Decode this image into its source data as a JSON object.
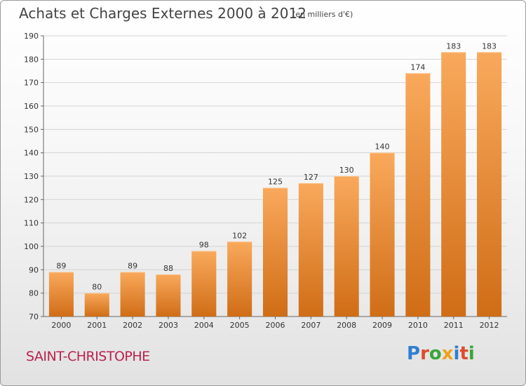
{
  "header": {
    "title": "Achats et Charges Externes 2000 à 2012",
    "unit": "(en milliers d'€)"
  },
  "footer": {
    "city": "SAINT-CHRISTOPHE",
    "logo_text": "Proxiti"
  },
  "colors": {
    "bar_light": "#f9a95c",
    "bar_dark": "#d06d16",
    "city": "#b8234e"
  },
  "chart_data": {
    "type": "bar",
    "title": "Achats et Charges Externes 2000 à 2012",
    "subtitle": "(en milliers d'€)",
    "categories": [
      "2000",
      "2001",
      "2002",
      "2003",
      "2004",
      "2005",
      "2006",
      "2007",
      "2008",
      "2009",
      "2010",
      "2011",
      "2012"
    ],
    "values": [
      89,
      80,
      89,
      88,
      98,
      102,
      125,
      127,
      130,
      140,
      174,
      183,
      183
    ],
    "ylim": [
      70,
      190
    ],
    "yticks": [
      70,
      80,
      90,
      100,
      110,
      120,
      130,
      140,
      150,
      160,
      170,
      180,
      190
    ],
    "grid": true,
    "data_labels": true
  }
}
